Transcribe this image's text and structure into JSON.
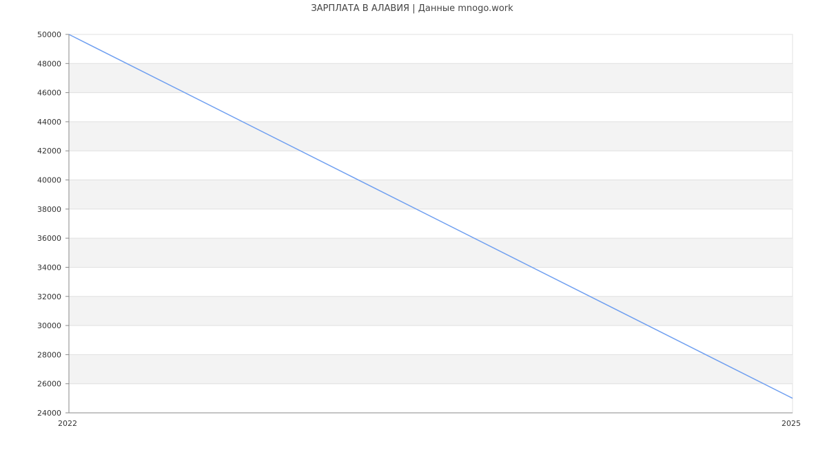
{
  "chart_data": {
    "type": "line",
    "title": "ЗАРПЛАТА В АЛАВИЯ | Данные mnogo.work",
    "xlabel": "",
    "ylabel": "",
    "x_ticks": [
      "2022",
      "2025"
    ],
    "xlim": [
      2022,
      2025
    ],
    "ylim": [
      24000,
      50000
    ],
    "y_ticks": [
      24000,
      26000,
      28000,
      30000,
      32000,
      34000,
      36000,
      38000,
      40000,
      42000,
      44000,
      46000,
      48000,
      50000
    ],
    "grid": true,
    "alternating_bands": true,
    "series": [
      {
        "x": [
          2022,
          2025
        ],
        "values": [
          50000,
          25000
        ],
        "color": "#6f9ff0"
      }
    ],
    "colors": {
      "band": "#f3f3f3",
      "grid": "#e0e0e0",
      "axis": "#888888",
      "text": "#333333"
    }
  }
}
